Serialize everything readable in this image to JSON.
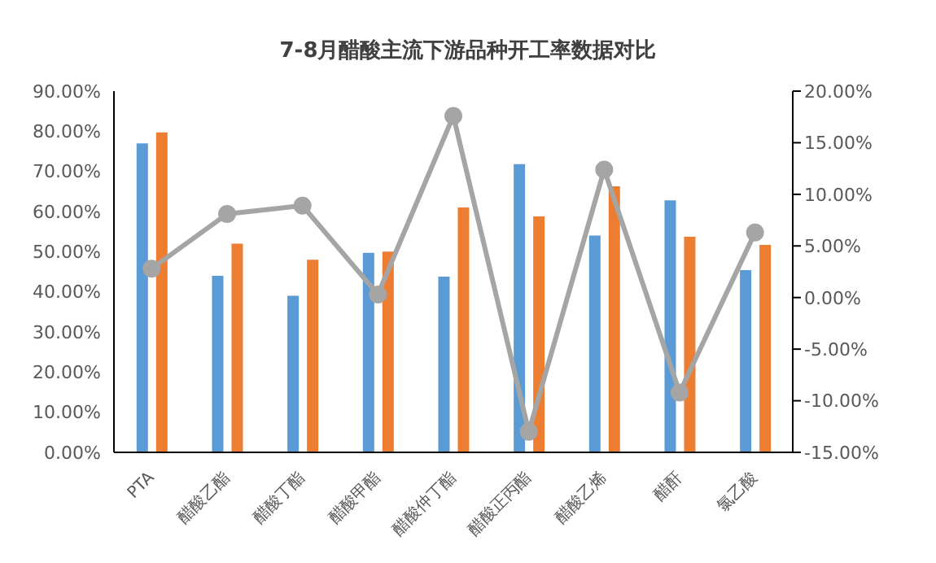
{
  "chart_data": {
    "type": "bar",
    "title": "7-8月醋酸主流下游品种开工率数据对比",
    "categories": [
      "PTA",
      "醋酸乙酯",
      "醋酸丁酯",
      "醋酸甲酯",
      "醋酸仲丁酯",
      "醋酸正丙酯",
      "醋酸乙烯",
      "醋酐",
      "氯乙酸"
    ],
    "series": [
      {
        "color": "#5b9bd5",
        "values": [
          77,
          44,
          39,
          49.7,
          43.8,
          71.8,
          54,
          62.8,
          45.4
        ]
      },
      {
        "color": "#ed7d31",
        "values": [
          79.7,
          52,
          48,
          50,
          61,
          58.8,
          66.3,
          53.7,
          51.7
        ]
      },
      {
        "type": "line",
        "axis": "y2",
        "color": "#a5a5a5",
        "values": [
          2.8,
          8.1,
          8.9,
          0.3,
          17.6,
          -13,
          12.4,
          -9.2,
          6.3
        ]
      }
    ],
    "ylim": [
      0,
      90
    ],
    "yticks": [
      {
        "value": 0,
        "label": "0.00%"
      },
      {
        "value": 10,
        "label": "10.00%"
      },
      {
        "value": 20,
        "label": "20.00%"
      },
      {
        "value": 30,
        "label": "30.00%"
      },
      {
        "value": 40,
        "label": "40.00%"
      },
      {
        "value": 50,
        "label": "50.00%"
      },
      {
        "value": 60,
        "label": "60.00%"
      },
      {
        "value": 70,
        "label": "70.00%"
      },
      {
        "value": 80,
        "label": "80.00%"
      },
      {
        "value": 90,
        "label": "90.00%"
      }
    ],
    "y2lim": [
      -15,
      20
    ],
    "y2ticks": [
      {
        "value": -15,
        "label": "-15.00%"
      },
      {
        "value": -10,
        "label": "-10.00%"
      },
      {
        "value": -5,
        "label": "-5.00%"
      },
      {
        "value": 0,
        "label": "0.00%"
      },
      {
        "value": 5,
        "label": "5.00%"
      },
      {
        "value": 10,
        "label": "10.00%"
      },
      {
        "value": 15,
        "label": "15.00%"
      },
      {
        "value": 20,
        "label": "20.00%"
      }
    ],
    "marker": "circle",
    "grid": false,
    "legend": false
  }
}
